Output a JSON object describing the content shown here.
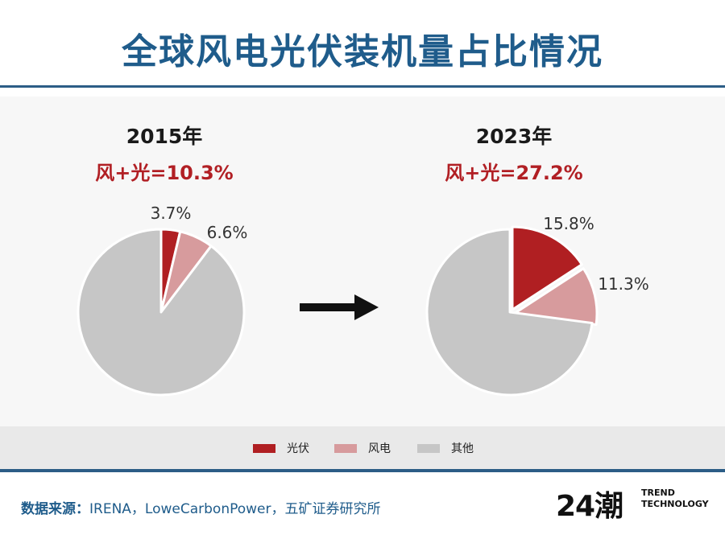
{
  "title": "全球风电光伏装机量占比情况",
  "charts": [
    {
      "year_label": "2015年",
      "share_label": "风+光=10.3%"
    },
    {
      "year_label": "2023年",
      "share_label": "风+光=27.2%"
    }
  ],
  "chart_data": [
    {
      "type": "pie",
      "categories": [
        "光伏",
        "风电",
        "其他"
      ],
      "values": [
        3.7,
        6.6,
        89.7
      ],
      "data_labels": [
        "3.7%",
        "6.6%",
        ""
      ]
    },
    {
      "type": "pie",
      "categories": [
        "光伏",
        "风电",
        "其他"
      ],
      "values": [
        15.8,
        11.3,
        72.9
      ],
      "data_labels": [
        "15.8%",
        "11.3%",
        ""
      ]
    }
  ],
  "legend": {
    "position": "bottom",
    "items": [
      {
        "label": "光伏",
        "color": "#b01f22"
      },
      {
        "label": "风电",
        "color": "#d79b9d"
      },
      {
        "label": "其他",
        "color": "#c6c6c6"
      }
    ]
  },
  "source": {
    "label": "数据来源：",
    "text": "IRENA，LoweCarbonPower，五矿证券研究所"
  },
  "logo": {
    "mark": "24潮",
    "line1": "TREND",
    "line2": "TECHNOLOGY"
  }
}
